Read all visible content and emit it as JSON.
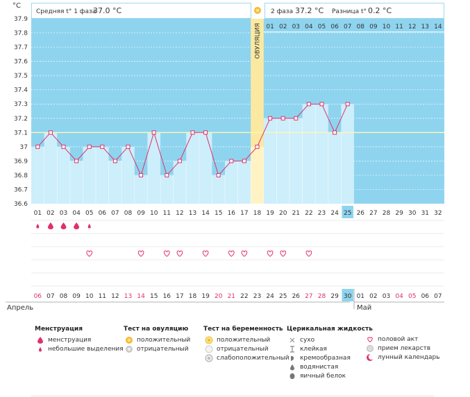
{
  "header": {
    "degree_unit": "°C",
    "phase1_label": "Средняя t° 1 фаза",
    "phase1_value": "37.0 °C",
    "phase2_label": "2 фаза",
    "phase2_value": "37.2 °C",
    "diff_label": "Разница t°",
    "diff_value": "0.2 °C"
  },
  "chart_data": {
    "type": "line",
    "ylabel": "°C",
    "ylim": [
      36.6,
      37.9
    ],
    "yticks": [
      "37.9",
      "37.8",
      "37.7",
      "37.6",
      "37.5",
      "37.4",
      "37.3",
      "37.2",
      "37.1",
      "37",
      "36.9",
      "36.8",
      "36.7",
      "36.6"
    ],
    "coverline": 37.1,
    "ovulation_day": 18,
    "ovulation_label": "ОВУЛЯЦИЯ",
    "today_day": 25,
    "cycle_days": [
      "01",
      "02",
      "03",
      "04",
      "05",
      "06",
      "07",
      "08",
      "09",
      "10",
      "11",
      "12",
      "13",
      "14",
      "15",
      "16",
      "17",
      "18",
      "19",
      "20",
      "21",
      "22",
      "23",
      "24",
      "25",
      "26",
      "27",
      "28",
      "29",
      "30",
      "31",
      "32"
    ],
    "phase2_days": [
      "01",
      "02",
      "03",
      "04",
      "05",
      "06",
      "07",
      "08",
      "09",
      "10",
      "11",
      "12",
      "13",
      "14"
    ],
    "series": [
      {
        "values": [
          37.0,
          37.1,
          37.0,
          36.9,
          37.0,
          37.0,
          36.9,
          37.0,
          36.8,
          37.1,
          36.8,
          36.9,
          37.1,
          37.1,
          36.8,
          36.9,
          36.9,
          37.0,
          37.2,
          37.2,
          37.2,
          37.3,
          37.3,
          37.1,
          37.3
        ]
      }
    ],
    "menstruation_days": [
      1,
      2,
      3,
      4,
      5
    ],
    "spotting_days": [
      1,
      5
    ],
    "intercourse_days": [
      5,
      9,
      11,
      12,
      14,
      16,
      17,
      19,
      20,
      22
    ]
  },
  "calendar": {
    "dates": [
      {
        "d": "06",
        "w": true
      },
      {
        "d": "07",
        "w": false
      },
      {
        "d": "08",
        "w": false
      },
      {
        "d": "09",
        "w": false
      },
      {
        "d": "10",
        "w": false
      },
      {
        "d": "11",
        "w": false
      },
      {
        "d": "12",
        "w": false
      },
      {
        "d": "13",
        "w": true
      },
      {
        "d": "14",
        "w": true
      },
      {
        "d": "15",
        "w": false
      },
      {
        "d": "16",
        "w": false
      },
      {
        "d": "17",
        "w": false
      },
      {
        "d": "18",
        "w": false
      },
      {
        "d": "19",
        "w": false
      },
      {
        "d": "20",
        "w": true
      },
      {
        "d": "21",
        "w": true
      },
      {
        "d": "22",
        "w": false
      },
      {
        "d": "23",
        "w": false
      },
      {
        "d": "24",
        "w": false
      },
      {
        "d": "25",
        "w": false
      },
      {
        "d": "26",
        "w": false
      },
      {
        "d": "27",
        "w": true
      },
      {
        "d": "28",
        "w": true
      },
      {
        "d": "29",
        "w": false
      },
      {
        "d": "30",
        "w": false
      },
      {
        "d": "01",
        "w": false
      },
      {
        "d": "02",
        "w": false
      },
      {
        "d": "03",
        "w": false
      },
      {
        "d": "04",
        "w": true
      },
      {
        "d": "05",
        "w": true
      },
      {
        "d": "06",
        "w": false
      },
      {
        "d": "07",
        "w": false
      }
    ],
    "month1": "Апрель",
    "month2": "Май"
  },
  "legend": {
    "menstruation": {
      "title": "Менструация",
      "items": [
        "менструация",
        "небольшие выделения"
      ]
    },
    "ovulation_test": {
      "title": "Тест на овуляцию",
      "items": [
        "положительный",
        "отрицательный"
      ]
    },
    "pregnancy_test": {
      "title": "Тест на беременность",
      "items": [
        "положительный",
        "отрицательный",
        "слабоположительный"
      ]
    },
    "cervical": {
      "title": "Церикальная жидкость",
      "items": [
        "сухо",
        "клейкая",
        "кремообразная",
        "водянистая",
        "яичный белок"
      ]
    },
    "other": {
      "items": [
        "половой акт",
        "прием лекарств",
        "лунный календарь"
      ]
    },
    "colors": {
      "plot_bg": "#8fd4ef",
      "fill": "#cdeefb",
      "line": "#e0306a",
      "ovulation": "#fbe9a2",
      "coverline": "#fff8b0",
      "weekend": "#e0306a",
      "today": "#8fd4ef"
    }
  }
}
